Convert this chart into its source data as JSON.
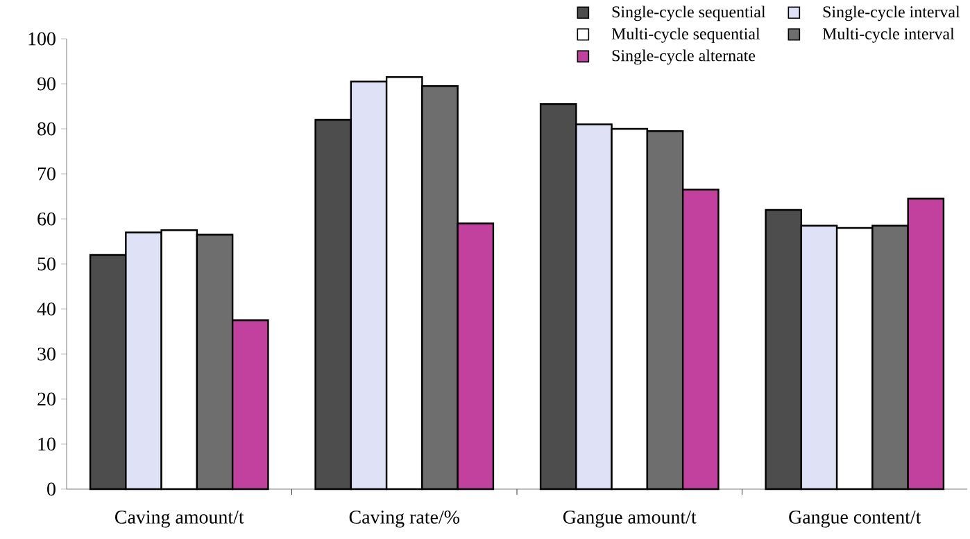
{
  "chart_data": {
    "type": "bar",
    "categories": [
      "Caving amount/t",
      "Caving rate/%",
      "Gangue amount/t",
      "Gangue content/t"
    ],
    "series": [
      {
        "name": "Single-cycle sequential",
        "color": "#4d4d4d",
        "values": [
          52,
          82,
          85.5,
          62
        ]
      },
      {
        "name": "Single-cycle interval",
        "color": "#dfe1f7",
        "values": [
          57,
          90.5,
          81,
          58.5
        ]
      },
      {
        "name": "Multi-cycle sequential",
        "color": "#ffffff",
        "values": [
          57.5,
          91.5,
          80,
          58
        ]
      },
      {
        "name": "Multi-cycle interval",
        "color": "#6e6e6e",
        "values": [
          56.5,
          89.5,
          79.5,
          58.5
        ]
      },
      {
        "name": "Single-cycle alternate",
        "color": "#c2409e",
        "values": [
          37.5,
          59,
          66.5,
          64.5
        ]
      }
    ],
    "ylim": [
      0,
      100
    ],
    "yticks": [
      0,
      10,
      20,
      30,
      40,
      50,
      60,
      70,
      80,
      90,
      100
    ],
    "grid": false,
    "legend": "top right"
  }
}
